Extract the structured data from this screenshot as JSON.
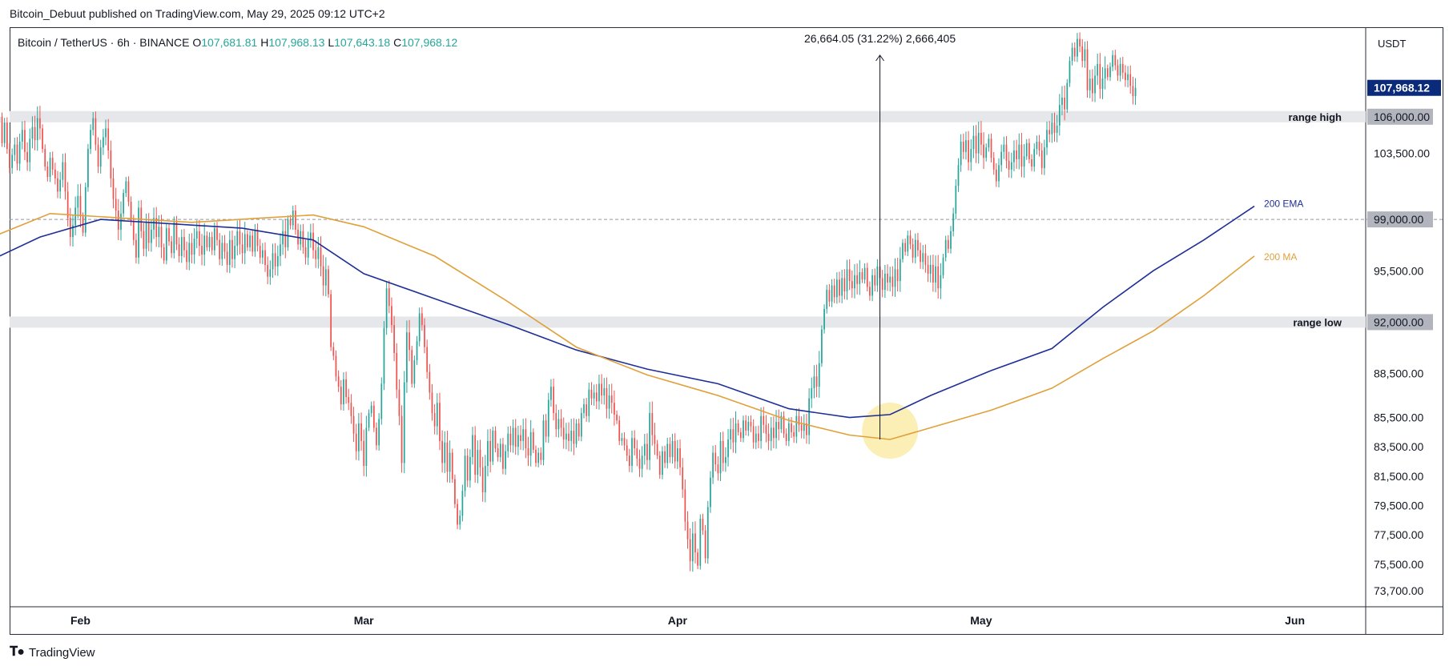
{
  "published": "Bitcoin_Debuut published on TradingView.com, May 29, 2025 09:12 UTC+2",
  "footer_brand": "TradingView",
  "footer_icon": "tradingview-logo-icon",
  "chart_data": {
    "type": "candlestick",
    "symbol": "Bitcoin / TetherUS · 6h · BINANCE",
    "ohlc": {
      "O": "107,681.81",
      "H": "107,968.13",
      "L": "107,643.18",
      "C": "107,968.12"
    },
    "currency": "USDT",
    "last_price": "107,968.12",
    "x_ticks": [
      "Feb",
      "Mar",
      "Apr",
      "May",
      "Jun"
    ],
    "y_ticks": [
      "103,500.00",
      "95,500.00",
      "88,500.00",
      "85,500.00",
      "83,500.00",
      "81,500.00",
      "79,500.00",
      "77,500.00",
      "75,500.00",
      "73,700.00"
    ],
    "ylim": [
      72600,
      112100
    ],
    "xlim": [
      "2025-01-25",
      "2025-06-08"
    ],
    "levels": [
      {
        "label": "range high",
        "value": 106000,
        "tag": "106,000.00"
      },
      {
        "label": "range low",
        "value": 92000,
        "tag": "92,000.00"
      },
      {
        "label": "",
        "value": 99000,
        "tag": "99,000.00"
      }
    ],
    "series": [
      {
        "name": "200 EMA",
        "color": "#1e2f97",
        "x": [
          "2025-01-24",
          "2025-01-28",
          "2025-02-03",
          "2025-02-10",
          "2025-02-17",
          "2025-02-24",
          "2025-03-01",
          "2025-03-08",
          "2025-03-15",
          "2025-03-22",
          "2025-03-29",
          "2025-04-05",
          "2025-04-12",
          "2025-04-18",
          "2025-04-22",
          "2025-04-26",
          "2025-05-02",
          "2025-05-08",
          "2025-05-13",
          "2025-05-18",
          "2025-05-23",
          "2025-05-28"
        ],
        "y": [
          96500,
          97800,
          99000,
          98700,
          98400,
          97600,
          95300,
          93600,
          91900,
          90100,
          88800,
          87800,
          86100,
          85500,
          85700,
          87000,
          88700,
          90200,
          93000,
          95500,
          97600,
          99900
        ]
      },
      {
        "name": "200 MA",
        "color": "#e0a03a",
        "x": [
          "2025-01-24",
          "2025-01-29",
          "2025-02-05",
          "2025-02-12",
          "2025-02-19",
          "2025-02-24",
          "2025-03-01",
          "2025-03-08",
          "2025-03-15",
          "2025-03-22",
          "2025-03-29",
          "2025-04-05",
          "2025-04-12",
          "2025-04-18",
          "2025-04-22",
          "2025-04-26",
          "2025-05-02",
          "2025-05-08",
          "2025-05-13",
          "2025-05-18",
          "2025-05-23",
          "2025-05-28"
        ],
        "y": [
          98000,
          99400,
          99100,
          98800,
          99100,
          99300,
          98500,
          96500,
          93500,
          90300,
          88400,
          87000,
          85300,
          84300,
          84000,
          84800,
          86000,
          87500,
          89500,
          91400,
          93800,
          96500
        ]
      }
    ],
    "candles": {
      "start": "2025-01-24T00:00",
      "interval_hours": 6,
      "closes": [
        106000,
        104200,
        105600,
        103800,
        102500,
        103400,
        104100,
        102800,
        104300,
        105100,
        103600,
        102900,
        104500,
        105300,
        104400,
        105900,
        105200,
        103800,
        102600,
        101900,
        103200,
        102400,
        101800,
        100900,
        101700,
        102900,
        100900,
        99100,
        97800,
        98600,
        99800,
        100600,
        99200,
        98100,
        101200,
        103800,
        105100,
        105900,
        104100,
        102600,
        103900,
        104600,
        105200,
        103700,
        101800,
        100400,
        99600,
        98300,
        99400,
        100800,
        101600,
        100200,
        98900,
        97600,
        96400,
        99800,
        98200,
        97000,
        98800,
        97400,
        98300,
        99100,
        97800,
        98500,
        97100,
        96200,
        98400,
        97500,
        96700,
        98800,
        97300,
        96500,
        97800,
        96900,
        96100,
        97400,
        96600,
        97700,
        98200,
        97200,
        96600,
        97900,
        97100,
        97800,
        96900,
        98400,
        97600,
        96300,
        97400,
        96800,
        95900,
        97600,
        96300,
        97200,
        98200,
        97300,
        96700,
        98000,
        97100,
        97900,
        96800,
        98300,
        97200,
        96400,
        96900,
        95900,
        95100,
        95600,
        96700,
        95800,
        96500,
        97300,
        98200,
        97100,
        99000,
        98600,
        99600,
        98300,
        97300,
        98200,
        97100,
        96400,
        97600,
        98100,
        96900,
        96300,
        97100,
        95800,
        94500,
        95600,
        93900,
        90300,
        89700,
        88300,
        87600,
        86400,
        88100,
        86900,
        86500,
        85600,
        84400,
        83200,
        85100,
        83900,
        82200,
        84800,
        85800,
        86300,
        84800,
        83600,
        85400,
        87800,
        91600,
        94300,
        93100,
        91800,
        89900,
        87400,
        85600,
        82400,
        87900,
        91300,
        90100,
        87800,
        89400,
        90700,
        92600,
        91800,
        90300,
        88600,
        87200,
        85800,
        84900,
        86500,
        83900,
        82400,
        83800,
        81800,
        83100,
        81300,
        79600,
        78200,
        78800,
        80500,
        82900,
        81200,
        82800,
        84300,
        81600,
        83300,
        82100,
        80400,
        82200,
        83900,
        82500,
        84600,
        83400,
        82800,
        83700,
        82000,
        83200,
        84400,
        83600,
        84800,
        83500,
        84300,
        83900,
        84700,
        83400,
        82900,
        84500,
        83300,
        82400,
        83100,
        82600,
        85300,
        84200,
        86700,
        87600,
        85800,
        84700,
        85400,
        84800,
        84000,
        84400,
        83900,
        84600,
        83700,
        85100,
        84200,
        85800,
        86400,
        85600,
        87400,
        86800,
        87200,
        86600,
        87800,
        87000,
        87500,
        86100,
        87000,
        86500,
        85700,
        85300,
        83900,
        84100,
        83600,
        82900,
        82200,
        84100,
        83400,
        82700,
        82000,
        82900,
        83700,
        82600,
        85800,
        84300,
        83700,
        82900,
        81600,
        83200,
        82400,
        83700,
        82800,
        83900,
        82500,
        83400,
        82100,
        80600,
        78400,
        77200,
        75700,
        77600,
        76300,
        75400,
        78600,
        77800,
        75900,
        79400,
        81400,
        83100,
        82300,
        81700,
        83900,
        82400,
        82800,
        84000,
        84700,
        83800,
        85100,
        84500,
        84100,
        85300,
        84600,
        85200,
        84900,
        83800,
        84400,
        83900,
        85600,
        85000,
        84400,
        83900,
        84800,
        84100,
        85200,
        84700,
        85600,
        84400,
        83900,
        85100,
        84500,
        84200,
        85600,
        85000,
        84600,
        85100,
        84300,
        86800,
        87500,
        88300,
        87600,
        89200,
        91500,
        92900,
        94200,
        93400,
        94500,
        93700,
        94900,
        93800,
        95000,
        94100,
        95600,
        94800,
        94300,
        95200,
        94600,
        95400,
        94900,
        95700,
        94400,
        93800,
        95200,
        94500,
        95800,
        95000,
        94200,
        95300,
        94700,
        95100,
        94400,
        95600,
        94800,
        96300,
        97400,
        96800,
        97900,
        97300,
        96400,
        97600,
        96900,
        96100,
        96700,
        95900,
        95300,
        95900,
        94700,
        95800,
        94300,
        95200,
        96400,
        97600,
        97000,
        98200,
        99400,
        101300,
        102700,
        104300,
        103600,
        104400,
        102900,
        103800,
        104700,
        103500,
        104900,
        104100,
        103200,
        103900,
        104500,
        103200,
        102400,
        101600,
        102700,
        103600,
        104100,
        103000,
        102400,
        102900,
        103700,
        103100,
        104100,
        102600,
        103300,
        104200,
        103100,
        102600,
        103800,
        104300,
        103700,
        102500,
        103900,
        105100,
        104800,
        105600,
        104900,
        105400,
        106800,
        107300,
        106500,
        108300,
        109800,
        110700,
        110100,
        111300,
        110800,
        109800,
        110600,
        107800,
        108600,
        107600,
        108800,
        109600,
        107900,
        108600,
        109300,
        108700,
        109400,
        110200,
        109500,
        108800,
        109600,
        109000,
        108500,
        108900,
        108100,
        107400,
        107968
      ]
    }
  }
}
